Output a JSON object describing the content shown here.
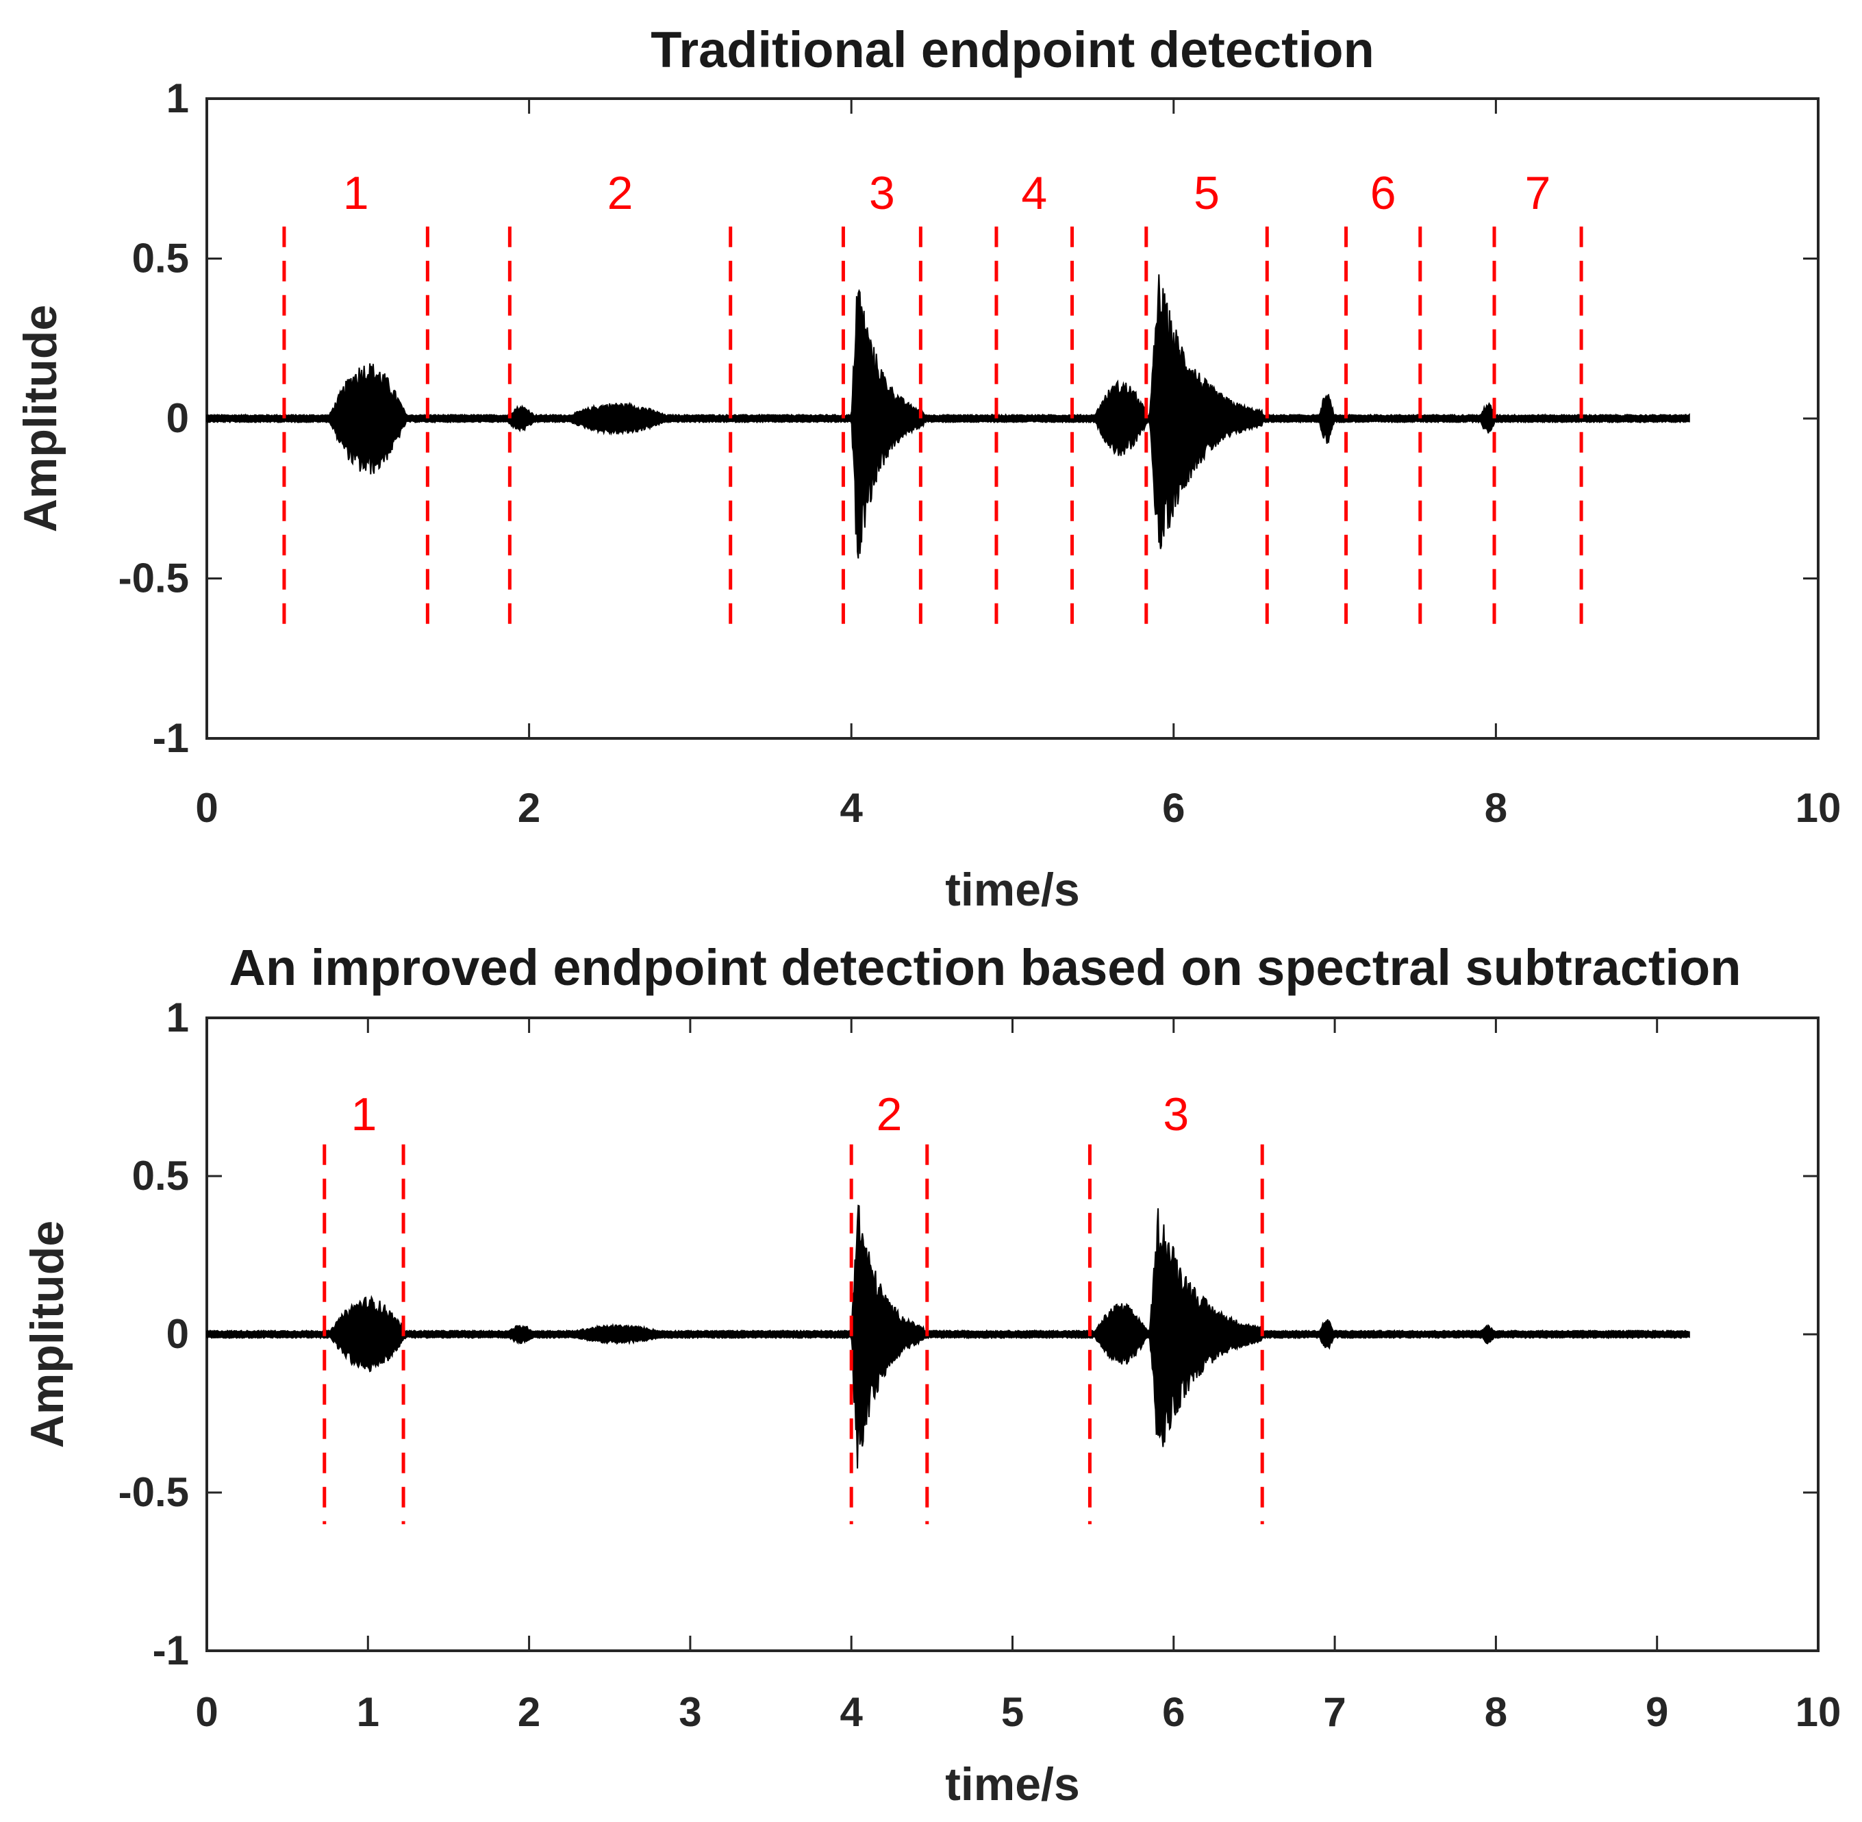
{
  "chart_data": [
    {
      "type": "line",
      "title": "Traditional endpoint detection",
      "xlabel": "time/s",
      "ylabel": "Amplitude",
      "xlim": [
        0,
        10
      ],
      "ylim": [
        -1,
        1
      ],
      "xticks": [
        "0",
        "2",
        "4",
        "6",
        "8",
        "10"
      ],
      "yticks": [
        "1",
        "0.5",
        "0",
        "-0.5",
        "-1"
      ],
      "signal_duration_s": 9.2,
      "bursts": [
        {
          "start": 0.75,
          "end": 1.25,
          "peak": 0.18
        },
        {
          "start": 1.85,
          "end": 2.05,
          "peak": 0.04
        },
        {
          "start": 2.2,
          "end": 2.9,
          "peak": 0.05
        },
        {
          "start": 4.0,
          "end": 4.45,
          "peak": 0.48
        },
        {
          "start": 5.5,
          "end": 5.85,
          "peak": 0.12
        },
        {
          "start": 5.85,
          "end": 6.55,
          "peak": 0.47
        },
        {
          "start": 6.9,
          "end": 7.0,
          "peak": 0.08
        },
        {
          "start": 7.9,
          "end": 8.0,
          "peak": 0.05
        }
      ],
      "segments": [
        {
          "label": "1",
          "start": 0.48,
          "end": 1.37
        },
        {
          "label": "2",
          "start": 1.88,
          "end": 3.25
        },
        {
          "label": "3",
          "start": 3.95,
          "end": 4.43
        },
        {
          "label": "4",
          "start": 4.9,
          "end": 5.37
        },
        {
          "label": "5",
          "start": 5.83,
          "end": 6.58
        },
        {
          "label": "6",
          "start": 7.07,
          "end": 7.53
        },
        {
          "label": "7",
          "start": 7.99,
          "end": 8.53
        }
      ],
      "boundary_ylim": [
        -0.65,
        0.6
      ]
    },
    {
      "type": "line",
      "title": "An improved endpoint detection based on spectral subtraction",
      "xlabel": "time/s",
      "ylabel": "Amplitude",
      "xlim": [
        0,
        10
      ],
      "ylim": [
        -1,
        1
      ],
      "xticks": [
        "0",
        "1",
        "2",
        "3",
        "4",
        "5",
        "6",
        "7",
        "8",
        "9",
        "10"
      ],
      "yticks": [
        "1",
        "0.5",
        "0",
        "-0.5",
        "-1"
      ],
      "signal_duration_s": 9.2,
      "bursts": [
        {
          "start": 0.75,
          "end": 1.25,
          "peak": 0.12
        },
        {
          "start": 1.85,
          "end": 2.05,
          "peak": 0.03
        },
        {
          "start": 2.2,
          "end": 2.9,
          "peak": 0.03
        },
        {
          "start": 4.0,
          "end": 4.45,
          "peak": 0.46
        },
        {
          "start": 5.5,
          "end": 5.85,
          "peak": 0.1
        },
        {
          "start": 5.85,
          "end": 6.55,
          "peak": 0.43
        },
        {
          "start": 6.9,
          "end": 7.0,
          "peak": 0.05
        },
        {
          "start": 7.9,
          "end": 8.0,
          "peak": 0.03
        }
      ],
      "segments": [
        {
          "label": "1",
          "start": 0.73,
          "end": 1.22
        },
        {
          "label": "2",
          "start": 4.0,
          "end": 4.47
        },
        {
          "label": "3",
          "start": 5.48,
          "end": 6.55
        }
      ],
      "boundary_ylim": [
        -0.6,
        0.6
      ]
    }
  ]
}
